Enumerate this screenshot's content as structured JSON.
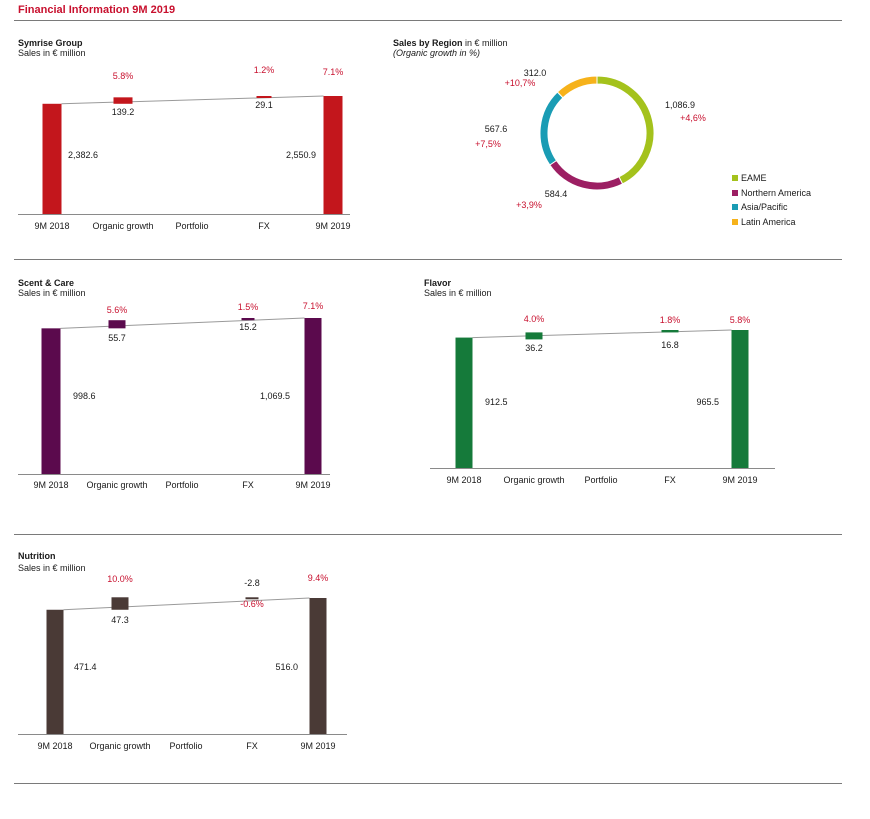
{
  "page_title": "Financial Information 9M 2019",
  "colors": {
    "accent_red": "#c8102e",
    "symrise": "#c3161c",
    "scent_care": "#5b0a4d",
    "flavor": "#157a3a",
    "nutrition": "#4a3a36",
    "connector": "#9a9a9a",
    "axis": "#8a8a8a"
  },
  "region": {
    "title": "Sales by Region",
    "title_unit": "in € million",
    "subtitle": "(Organic growth in %)"
  },
  "chart_data": [
    {
      "id": "symrise",
      "type": "bar",
      "subtype": "waterfall",
      "title": "Symrise Group",
      "subtitle": "Sales in € million",
      "categories": [
        "9M 2018",
        "Organic growth",
        "Portfolio",
        "FX",
        "9M 2019"
      ],
      "values": [
        2382.6,
        139.2,
        0,
        29.1,
        2550.9
      ],
      "value_labels": [
        "2,382.6",
        "139.2",
        "",
        "29.1",
        "2,550.9"
      ],
      "growth_labels": [
        "",
        "5.8%",
        "",
        "1.2%",
        "7.1%"
      ],
      "color": "#c3161c"
    },
    {
      "id": "scent",
      "type": "bar",
      "subtype": "waterfall",
      "title": "Scent & Care",
      "subtitle": "Sales in € million",
      "categories": [
        "9M 2018",
        "Organic growth",
        "Portfolio",
        "FX",
        "9M 2019"
      ],
      "values": [
        998.6,
        55.7,
        0,
        15.2,
        1069.5
      ],
      "value_labels": [
        "998.6",
        "55.7",
        "",
        "15.2",
        "1,069.5"
      ],
      "growth_labels": [
        "",
        "5.6%",
        "",
        "1.5%",
        "7.1%"
      ],
      "color": "#5b0a4d"
    },
    {
      "id": "flavor",
      "type": "bar",
      "subtype": "waterfall",
      "title": "Flavor",
      "subtitle": "Sales in € million",
      "categories": [
        "9M 2018",
        "Organic growth",
        "Portfolio",
        "FX",
        "9M 2019"
      ],
      "values": [
        912.5,
        36.2,
        0,
        16.8,
        965.5
      ],
      "value_labels": [
        "912.5",
        "36.2",
        "",
        "16.8",
        "965.5"
      ],
      "growth_labels": [
        "",
        "4.0%",
        "",
        "1.8%",
        "5.8%"
      ],
      "color": "#157a3a"
    },
    {
      "id": "nutrition",
      "type": "bar",
      "subtype": "waterfall",
      "title": "Nutrition",
      "subtitle": "Sales in € million",
      "categories": [
        "9M 2018",
        "Organic growth",
        "Portfolio",
        "FX",
        "9M 2019"
      ],
      "values": [
        471.4,
        47.3,
        0,
        -2.8,
        516.0
      ],
      "value_labels": [
        "471.4",
        "47.3",
        "",
        "-2.8",
        "516.0"
      ],
      "growth_labels": [
        "",
        "10.0%",
        "",
        "-0.6%",
        "9.4%"
      ],
      "color": "#4a3a36"
    },
    {
      "id": "region",
      "type": "pie",
      "subtype": "donut",
      "title": "Sales by Region in € million",
      "subtitle": "(Organic growth in %)",
      "categories": [
        "EAME",
        "Northern America",
        "Asia/Pacific",
        "Latin America"
      ],
      "values": [
        1086.9,
        584.4,
        567.6,
        312.0
      ],
      "value_labels": [
        "1,086.9",
        "584.4",
        "567.6",
        "312.0"
      ],
      "growth_labels": [
        "+4,6%",
        "+3,9%",
        "+7,5%",
        "+10,7%"
      ],
      "colors": [
        "#a4c21c",
        "#9c1f63",
        "#1a9cb4",
        "#f6b21b"
      ],
      "legend_position": "right"
    }
  ]
}
